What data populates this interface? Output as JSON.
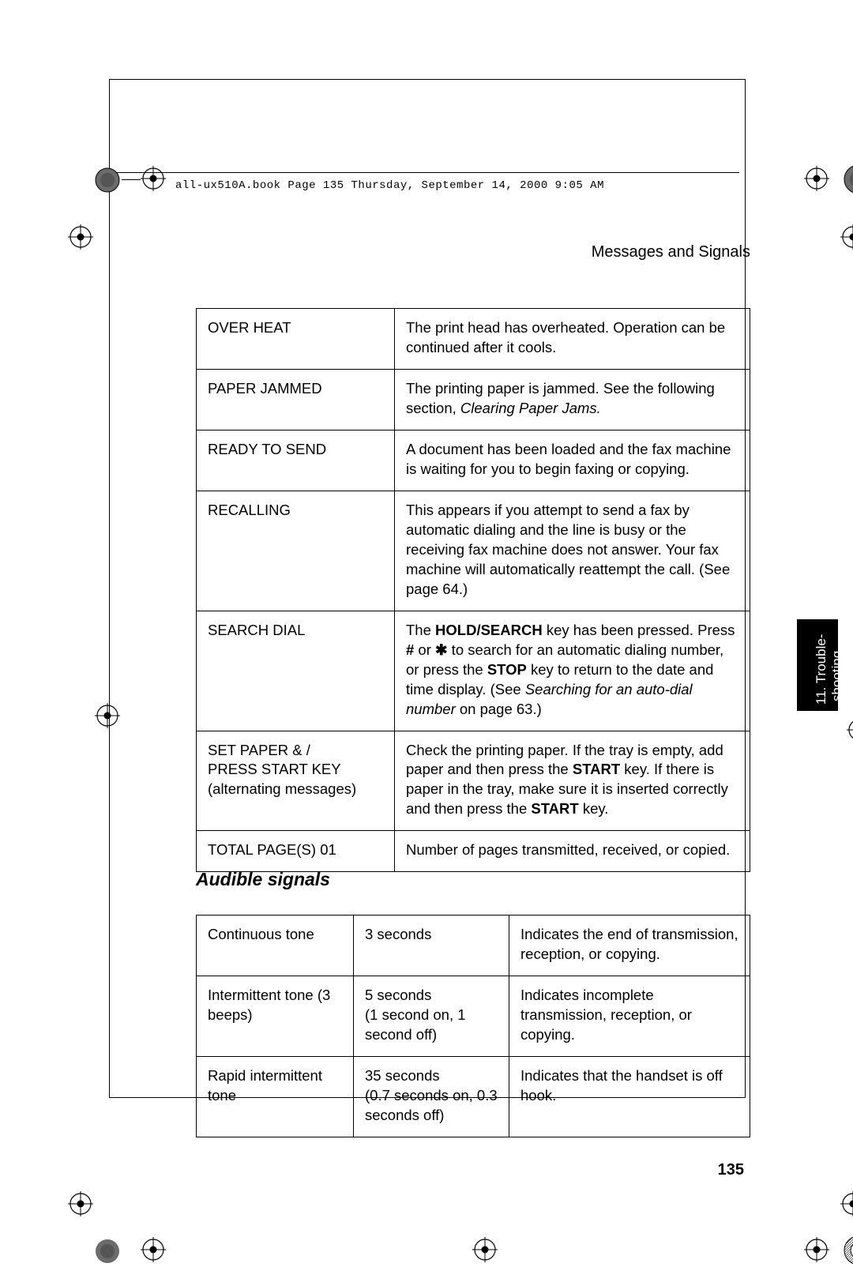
{
  "meta_line": "all-ux510A.book  Page 135  Thursday, September 14, 2000  9:05 AM",
  "header": "Messages and Signals",
  "tab": {
    "line1": "11. Trouble-",
    "line2": "shooting"
  },
  "messages": [
    {
      "name": "OVER HEAT",
      "desc_parts": [
        {
          "t": "The print head has overheated. Operation can be continued after it cools."
        }
      ]
    },
    {
      "name": "PAPER JAMMED",
      "desc_parts": [
        {
          "t": "The printing paper is jammed. See the following section, "
        },
        {
          "t": "Clearing Paper Jams.",
          "i": true
        }
      ]
    },
    {
      "name": "READY TO SEND",
      "desc_parts": [
        {
          "t": "A document has been loaded and the fax machine is waiting for you to begin faxing or copying."
        }
      ]
    },
    {
      "name": "RECALLING",
      "desc_parts": [
        {
          "t": "This appears if you attempt to send a fax by automatic dialing and the line is busy or the receiving fax machine does not answer. Your fax machine will automatically reattempt the call. (See page 64.)"
        }
      ]
    },
    {
      "name": "SEARCH DIAL",
      "desc_parts": [
        {
          "t": "The "
        },
        {
          "t": "HOLD/SEARCH",
          "b": true
        },
        {
          "t": " key has been pressed. Press "
        },
        {
          "t": "#",
          "b": true
        },
        {
          "t": " or "
        },
        {
          "t": "✱",
          "b": true,
          "cls": "star"
        },
        {
          "t": " to search for an automatic dialing number, or press the "
        },
        {
          "t": "STOP",
          "b": true
        },
        {
          "t": " key to return to the date and time display. (See "
        },
        {
          "t": "Searching for an auto-dial number",
          "i": true
        },
        {
          "t": " on page 63.)"
        }
      ]
    },
    {
      "name": "SET PAPER & /\nPRESS START KEY",
      "sub": "(alternating messages)",
      "desc_parts": [
        {
          "t": "Check the printing paper. If the tray is empty, add paper and then press the "
        },
        {
          "t": "START",
          "b": true
        },
        {
          "t": " key. If there is paper in the tray, make sure it is inserted correctly and then press the "
        },
        {
          "t": "START",
          "b": true
        },
        {
          "t": " key."
        }
      ]
    },
    {
      "name": "TOTAL PAGE(S) 01",
      "desc_parts": [
        {
          "t": "Number of pages transmitted, received, or copied."
        }
      ]
    }
  ],
  "section_heading": "Audible signals",
  "signals": [
    {
      "c1": "Continuous tone",
      "c2": "3 seconds",
      "c3": "Indicates the end of transmission, reception, or copying."
    },
    {
      "c1": "Intermittent tone (3 beeps)",
      "c2": "5 seconds\n(1 second on, 1 second off)",
      "c3": "Indicates incomplete transmission, reception, or copying."
    },
    {
      "c1": "Rapid intermittent tone",
      "c2": "35 seconds\n(0.7 seconds on, 0.3 seconds off)",
      "c3": "Indicates that the handset is off hook."
    }
  ],
  "page_number": "135",
  "colors": {
    "fg": "#000000",
    "bg": "#ffffff",
    "tab_bg": "#000000",
    "tab_fg": "#ffffff"
  }
}
